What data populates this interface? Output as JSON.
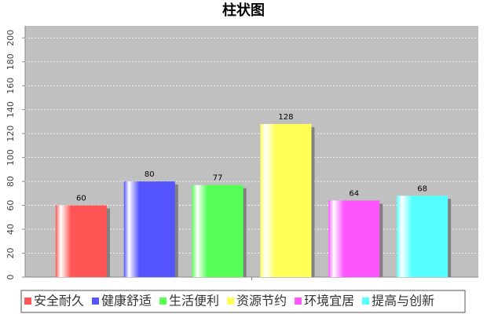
{
  "chart_data": {
    "type": "bar",
    "title": "柱状图",
    "categories": [
      null
    ],
    "series": [
      {
        "name": "安全耐久",
        "color": "#ff5555",
        "values": [
          60
        ]
      },
      {
        "name": "健康舒适",
        "color": "#5555ff",
        "values": [
          80
        ]
      },
      {
        "name": "生活便利",
        "color": "#55ff55",
        "values": [
          77
        ]
      },
      {
        "name": "资源节约",
        "color": "#ffff55",
        "values": [
          128
        ]
      },
      {
        "name": "环境宜居",
        "color": "#ff55ff",
        "values": [
          64
        ]
      },
      {
        "name": "提高与创新",
        "color": "#55ffff",
        "values": [
          68
        ]
      }
    ],
    "ylim": [
      0,
      210
    ],
    "yticks": [
      0,
      20,
      40,
      60,
      80,
      100,
      120,
      140,
      160,
      180,
      200
    ],
    "grid": true
  }
}
